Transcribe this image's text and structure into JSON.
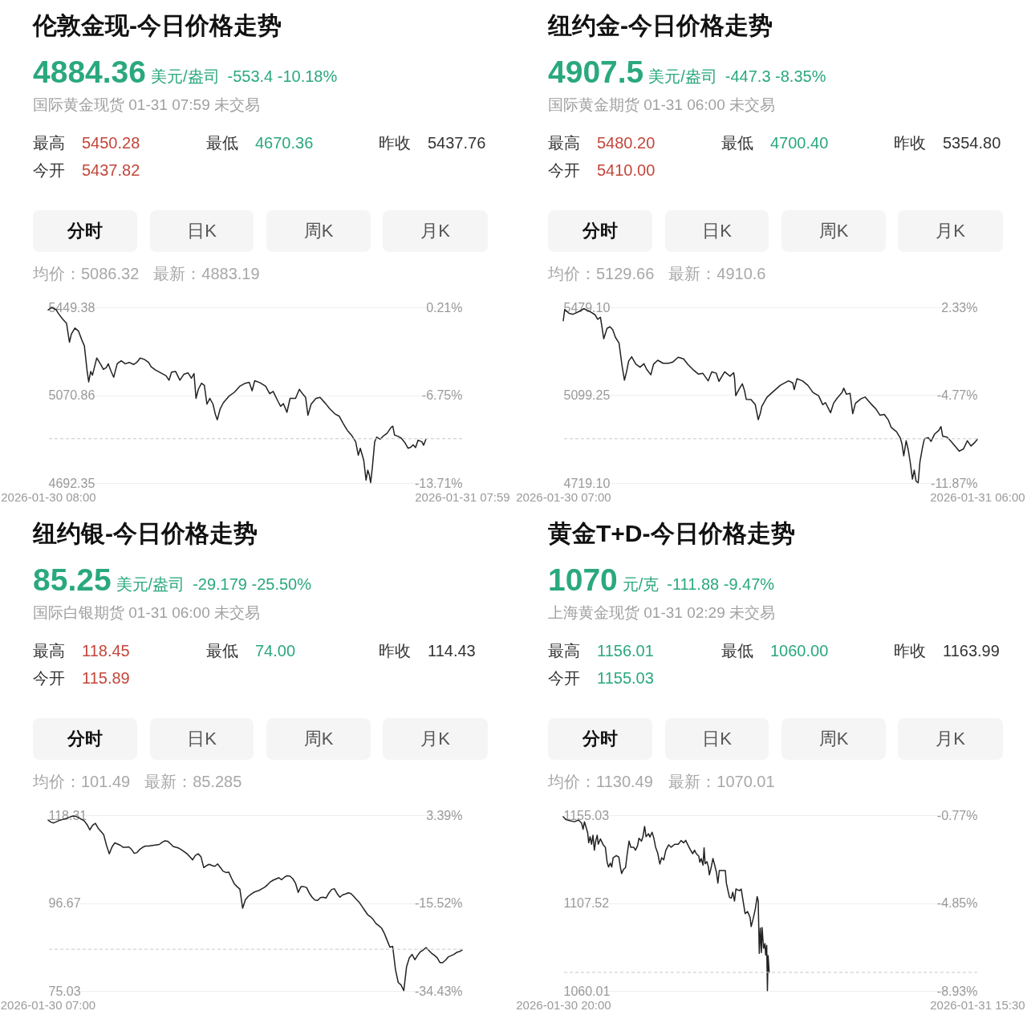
{
  "chart_data": [
    {
      "type": "line",
      "title": "伦敦金现-今日价格走势",
      "subtitle": "国际黄金现货 01-31 07:59 未交易",
      "annotations": [
        "4884.36",
        "美元/盎司",
        "-553.4 -10.18%",
        "最高",
        "5450.28",
        "最低",
        "4670.36",
        "昨收",
        "5437.76",
        "今开",
        "5437.82",
        "分时",
        "日K",
        "周K",
        "月K",
        "均价：5086.32",
        "最新：4883.19"
      ],
      "color": "#222222",
      "grid": "y",
      "xlim": [
        "2026-01-30T08:00",
        "2026-01-31T07:59"
      ],
      "xticks": [
        {
          "value": "2026-01-30T08:00",
          "label": "2026-01-30 08:00"
        },
        {
          "value": "2026-01-31T07:59",
          "label": "2026-01-31 07:59"
        }
      ],
      "ylim": [
        4692.35,
        5449.38
      ],
      "yticks": [
        5449.38,
        5070.86,
        4692.35
      ],
      "y2lim": [
        -13.71,
        0.21
      ],
      "y2ticks": [
        {
          "value": 0.21,
          "label": "0.21%"
        },
        {
          "value": -6.75,
          "label": "-6.75%"
        },
        {
          "value": -13.71,
          "label": "-13.71%"
        }
      ],
      "ref_lines": [
        {
          "axis": "y",
          "value": 4883.19,
          "line_style": "dashed",
          "color": "#c8c8c8"
        }
      ],
      "x": [
        "2026-01-30T08:00",
        "2026-01-30T08:12",
        "2026-01-30T08:27",
        "2026-01-30T08:36",
        "2026-01-30T08:50",
        "2026-01-30T09:04",
        "2026-01-30T09:14",
        "2026-01-30T09:21",
        "2026-01-30T09:33",
        "2026-01-30T09:45",
        "2026-01-30T09:57",
        "2026-01-30T10:06",
        "2026-01-30T10:15",
        "2026-01-30T10:21",
        "2026-01-30T10:28",
        "2026-01-30T10:34",
        "2026-01-30T10:49",
        "2026-01-30T11:03",
        "2026-01-30T11:12",
        "2026-01-30T11:22",
        "2026-01-30T11:29",
        "2026-01-30T11:39",
        "2026-01-30T11:48",
        "2026-01-30T12:00",
        "2026-01-30T12:14",
        "2026-01-30T12:28",
        "2026-01-30T12:42",
        "2026-01-30T12:57",
        "2026-01-30T13:08",
        "2026-01-30T13:20",
        "2026-01-30T13:34",
        "2026-01-30T13:49",
        "2026-01-30T13:58",
        "2026-01-30T14:12",
        "2026-01-30T14:31",
        "2026-01-30T14:50",
        "2026-01-30T15:00",
        "2026-01-30T15:09",
        "2026-01-30T15:23",
        "2026-01-30T15:38",
        "2026-01-30T15:52",
        "2026-01-30T16:06",
        "2026-01-30T16:18",
        "2026-01-30T16:27",
        "2026-01-30T16:34",
        "2026-01-30T16:42",
        "2026-01-30T16:53",
        "2026-01-30T17:03",
        "2026-01-30T17:12",
        "2026-01-30T17:22",
        "2026-01-30T17:33",
        "2026-01-30T17:41",
        "2026-01-30T17:48",
        "2026-01-30T17:58",
        "2026-01-30T18:09",
        "2026-01-30T18:28",
        "2026-01-30T18:47",
        "2026-01-30T19:06",
        "2026-01-30T19:25",
        "2026-01-30T19:39",
        "2026-01-30T19:49",
        "2026-01-30T19:58",
        "2026-01-30T20:17",
        "2026-01-30T20:36",
        "2026-01-30T20:50",
        "2026-01-30T21:02",
        "2026-01-30T21:19",
        "2026-01-30T21:28",
        "2026-01-30T21:38",
        "2026-01-30T21:50",
        "2026-01-30T22:01",
        "2026-01-30T22:20",
        "2026-01-30T22:33",
        "2026-01-30T22:46",
        "2026-01-30T22:55",
        "2026-01-30T23:03",
        "2026-01-30T23:14",
        "2026-01-30T23:31",
        "2026-01-30T23:45",
        "2026-01-31T00:04",
        "2026-01-31T00:19",
        "2026-01-31T00:38",
        "2026-01-31T00:52",
        "2026-01-31T01:06",
        "2026-01-31T01:20",
        "2026-01-31T01:34",
        "2026-01-31T01:49",
        "2026-01-31T01:58",
        "2026-01-31T02:05",
        "2026-01-31T02:17",
        "2026-01-31T02:25",
        "2026-01-31T02:31",
        "2026-01-31T02:36",
        "2026-01-31T02:41",
        "2026-01-31T02:47",
        "2026-01-31T02:55",
        "2026-01-31T03:02",
        "2026-01-31T03:14",
        "2026-01-31T03:26",
        "2026-01-31T03:38",
        "2026-01-31T03:52",
        "2026-01-31T03:58",
        "2026-01-31T04:04",
        "2026-01-31T04:15",
        "2026-01-31T04:27",
        "2026-01-31T04:39",
        "2026-01-31T04:51",
        "2026-01-31T05:01",
        "2026-01-31T05:08",
        "2026-01-31T05:17",
        "2026-01-31T05:26",
        "2026-01-31T05:39",
        "2026-01-31T05:45",
        "2026-01-31T05:53"
      ],
      "values": [
        5438,
        5448,
        5440,
        5422,
        5399,
        5380,
        5299,
        5335,
        5360,
        5348,
        5309,
        5283,
        5180,
        5128,
        5173,
        5157,
        5231,
        5203,
        5182,
        5190,
        5206,
        5173,
        5148,
        5206,
        5219,
        5206,
        5212,
        5203,
        5212,
        5231,
        5225,
        5212,
        5193,
        5180,
        5167,
        5154,
        5135,
        5170,
        5173,
        5135,
        5161,
        5167,
        5144,
        5164,
        5057,
        5096,
        5122,
        5113,
        5032,
        5057,
        5032,
        4989,
        4965,
        5012,
        5038,
        5066,
        5083,
        5109,
        5122,
        5126,
        5090,
        5133,
        5124,
        5109,
        5077,
        5087,
        5044,
        5023,
        5034,
        4997,
        5057,
        5057,
        5096,
        5074,
        5061,
        4984,
        5032,
        5057,
        5061,
        5035,
        5012,
        4989,
        4980,
        4948,
        4919,
        4899,
        4870,
        4812,
        4842,
        4790,
        4705,
        4748,
        4729,
        4694,
        4761,
        4870,
        4890,
        4881,
        4896,
        4906,
        4932,
        4937,
        4899,
        4894,
        4886,
        4868,
        4842,
        4847,
        4857,
        4845,
        4877,
        4870,
        4855,
        4881
      ]
    },
    {
      "type": "line",
      "title": "纽约金-今日价格走势",
      "subtitle": "国际黄金期货 01-31 06:00 未交易",
      "annotations": [
        "4907.5",
        "美元/盎司",
        "-447.3 -8.35%",
        "最高",
        "5480.20",
        "最低",
        "4700.40",
        "昨收",
        "5354.80",
        "今开",
        "5410.00",
        "分时",
        "日K",
        "周K",
        "月K",
        "均价：5129.66",
        "最新：4910.6"
      ],
      "color": "#222222",
      "grid": "y",
      "xlim": [
        "2026-01-30T07:00",
        "2026-01-31T06:00"
      ],
      "xticks": [
        {
          "value": "2026-01-30T07:00",
          "label": "2026-01-30 07:00"
        },
        {
          "value": "2026-01-31T06:00",
          "label": "2026-01-31 06:00"
        }
      ],
      "ylim": [
        4719.1,
        5479.1
      ],
      "yticks": [
        {
          "value": 5479.1,
          "label": "5479.10"
        },
        5099.25,
        {
          "value": 4719.1,
          "label": "4719.10"
        }
      ],
      "y2lim": [
        -11.87,
        2.33
      ],
      "y2ticks": [
        {
          "value": 2.33,
          "label": "2.33%"
        },
        {
          "value": -4.77,
          "label": "-4.77%"
        },
        {
          "value": -11.87,
          "label": "-11.87%"
        }
      ],
      "ref_lines": [
        {
          "axis": "y",
          "value": 4910.6,
          "line_style": "dashed",
          "color": "#c8c8c8"
        }
      ],
      "x": [
        "2026-01-30T07:00",
        "2026-01-30T07:05",
        "2026-01-30T07:19",
        "2026-01-30T07:33",
        "2026-01-30T07:51",
        "2026-01-30T08:09",
        "2026-01-30T08:27",
        "2026-01-30T08:46",
        "2026-01-30T08:55",
        "2026-01-30T09:04",
        "2026-01-30T09:15",
        "2026-01-30T09:26",
        "2026-01-30T09:36",
        "2026-01-30T09:45",
        "2026-01-30T09:54",
        "2026-01-30T10:06",
        "2026-01-30T10:16",
        "2026-01-30T10:24",
        "2026-01-30T10:31",
        "2026-01-30T10:38",
        "2026-01-30T10:48",
        "2026-01-30T11:02",
        "2026-01-30T11:16",
        "2026-01-30T11:29",
        "2026-01-30T11:38",
        "2026-01-30T11:52",
        "2026-01-30T12:01",
        "2026-01-30T12:15",
        "2026-01-30T12:33",
        "2026-01-30T12:51",
        "2026-01-30T13:05",
        "2026-01-30T13:23",
        "2026-01-30T13:41",
        "2026-01-30T13:55",
        "2026-01-30T14:13",
        "2026-01-30T14:31",
        "2026-01-30T14:45",
        "2026-01-30T15:03",
        "2026-01-30T15:15",
        "2026-01-30T15:30",
        "2026-01-30T15:39",
        "2026-01-30T15:58",
        "2026-01-30T16:16",
        "2026-01-30T16:28",
        "2026-01-30T16:31",
        "2026-01-30T16:35",
        "2026-01-30T16:46",
        "2026-01-30T16:57",
        "2026-01-30T17:04",
        "2026-01-30T17:10",
        "2026-01-30T17:26",
        "2026-01-30T17:40",
        "2026-01-30T17:50",
        "2026-01-30T17:57",
        "2026-01-30T18:02",
        "2026-01-30T18:19",
        "2026-01-30T18:41",
        "2026-01-30T19:04",
        "2026-01-30T19:31",
        "2026-01-30T19:45",
        "2026-01-30T19:50",
        "2026-01-30T19:59",
        "2026-01-30T20:17",
        "2026-01-30T20:35",
        "2026-01-30T20:53",
        "2026-01-30T21:11",
        "2026-01-30T21:25",
        "2026-01-30T21:34",
        "2026-01-30T21:51",
        "2026-01-30T22:01",
        "2026-01-30T22:13",
        "2026-01-30T22:29",
        "2026-01-30T22:35",
        "2026-01-30T22:44",
        "2026-01-30T22:56",
        "2026-01-30T23:05",
        "2026-01-30T23:14",
        "2026-01-30T23:33",
        "2026-01-30T23:46",
        "2026-01-31T00:04",
        "2026-01-31T00:23",
        "2026-01-31T00:36",
        "2026-01-31T00:50",
        "2026-01-31T01:03",
        "2026-01-31T01:13",
        "2026-01-31T01:31",
        "2026-01-31T01:43",
        "2026-01-31T01:49",
        "2026-01-31T01:55",
        "2026-01-31T02:03",
        "2026-01-31T02:10",
        "2026-01-31T02:17",
        "2026-01-31T02:24",
        "2026-01-31T02:30",
        "2026-01-31T02:36",
        "2026-01-31T02:43",
        "2026-01-31T02:49",
        "2026-01-31T02:57",
        "2026-01-31T03:04",
        "2026-01-31T03:17",
        "2026-01-31T03:26",
        "2026-01-31T03:38",
        "2026-01-31T03:52",
        "2026-01-31T03:59",
        "2026-01-31T04:05",
        "2026-01-31T04:19",
        "2026-01-31T04:33",
        "2026-01-31T04:46",
        "2026-01-31T05:00",
        "2026-01-31T05:14",
        "2026-01-31T05:27",
        "2026-01-31T05:39",
        "2026-01-31T05:50",
        "2026-01-31T06:00"
      ],
      "values": [
        5421,
        5470,
        5453,
        5449,
        5460,
        5473,
        5462,
        5447,
        5427,
        5436,
        5343,
        5388,
        5395,
        5382,
        5349,
        5324,
        5226,
        5164,
        5200,
        5246,
        5265,
        5233,
        5220,
        5235,
        5211,
        5187,
        5233,
        5250,
        5237,
        5237,
        5242,
        5263,
        5256,
        5233,
        5209,
        5190,
        5194,
        5161,
        5200,
        5194,
        5159,
        5200,
        5181,
        5196,
        5172,
        5097,
        5125,
        5148,
        5120,
        5081,
        5080,
        5058,
        4993,
        5021,
        5051,
        5090,
        5116,
        5142,
        5161,
        5152,
        5123,
        5170,
        5161,
        5142,
        5110,
        5097,
        5058,
        5067,
        5023,
        5064,
        5086,
        5110,
        5129,
        5103,
        5107,
        5019,
        5064,
        5084,
        5091,
        5064,
        5038,
        5012,
        5016,
        4993,
        4960,
        4941,
        4915,
        4889,
        4837,
        4902,
        4863,
        4805,
        4736,
        4775,
        4727,
        4720,
        4811,
        4870,
        4911,
        4915,
        4899,
        4931,
        4947,
        4963,
        4921,
        4918,
        4899,
        4879,
        4857,
        4866,
        4902,
        4879,
        4892,
        4907
      ]
    },
    {
      "type": "line",
      "title": "纽约银-今日价格走势",
      "subtitle": "国际白银期货 01-31 06:00 未交易",
      "annotations": [
        "85.25",
        "美元/盎司",
        "-29.179 -25.50%",
        "最高",
        "118.45",
        "最低",
        "74.00",
        "昨收",
        "114.43",
        "今开",
        "115.89",
        "分时",
        "日K",
        "周K",
        "月K",
        "均价：101.49",
        "最新：85.285",
        "2026-01-30 07:00"
      ],
      "color": "#222222",
      "grid": "y",
      "categories": [
        null,
        null,
        null,
        null,
        null,
        null,
        null,
        null,
        null,
        null,
        null,
        null,
        null,
        null,
        null,
        null,
        null,
        null,
        null,
        null,
        null,
        null,
        null,
        null,
        null,
        null,
        null,
        null,
        null,
        null,
        null,
        null,
        null,
        null,
        null,
        null,
        null,
        null,
        null,
        null,
        null,
        null,
        null,
        null,
        null,
        null,
        null,
        null,
        null,
        null,
        null,
        null,
        null,
        null,
        null,
        null,
        null,
        null,
        null,
        null,
        null,
        null,
        null,
        null,
        null,
        null,
        null,
        null,
        null,
        null,
        null,
        null,
        null,
        null,
        null,
        null,
        null,
        null,
        null,
        null,
        null,
        null,
        null,
        null,
        null,
        null,
        null,
        null,
        null,
        null,
        null,
        null,
        null,
        null,
        null,
        null,
        null,
        null,
        null,
        null,
        null,
        null,
        null,
        null,
        null,
        null,
        null,
        null,
        null,
        null,
        null,
        null,
        null,
        null,
        null,
        null,
        null,
        null,
        null,
        null,
        null,
        null,
        null,
        null,
        null,
        null,
        null,
        null,
        null,
        null,
        null,
        null,
        null,
        null,
        null,
        null,
        null,
        null,
        null,
        null,
        null,
        null,
        null,
        null,
        null,
        null,
        null,
        null,
        null,
        null
      ],
      "ylim": [
        75.03,
        118.31
      ],
      "yticks": [
        118.31,
        96.67,
        75.03
      ],
      "y2lim": [
        -34.43,
        3.39
      ],
      "y2ticks": [
        {
          "value": 3.39,
          "label": "3.39%"
        },
        {
          "value": -15.52,
          "label": "-15.52%"
        },
        {
          "value": -34.43,
          "label": "-34.43%"
        }
      ],
      "ref_lines": [
        {
          "axis": "y",
          "value": 85.285,
          "line_style": "dashed",
          "color": "#c8c8c8"
        }
      ],
      "values": [
        117.1,
        116.6,
        116.4,
        116.7,
        117.0,
        117.2,
        117.4,
        117.6,
        117.9,
        118.1,
        118.0,
        117.7,
        117.3,
        116.9,
        116.0,
        114.7,
        115.8,
        116.3,
        115.1,
        114.3,
        113.5,
        110.9,
        108.8,
        110.5,
        111.5,
        111.2,
        110.9,
        110.4,
        110.4,
        110.5,
        109.9,
        108.9,
        109.1,
        109.9,
        110.4,
        110.7,
        110.7,
        110.8,
        110.9,
        111.0,
        111.1,
        111.6,
        112.0,
        111.9,
        111.3,
        110.6,
        110.4,
        110.2,
        109.8,
        109.3,
        108.8,
        108.1,
        107.3,
        108.4,
        108.8,
        108.1,
        105.4,
        105.9,
        106.2,
        105.9,
        105.7,
        106.3,
        105.4,
        104.5,
        104.2,
        104.3,
        102.8,
        101.4,
        100.7,
        100.1,
        95.4,
        97.5,
        98.3,
        98.8,
        99.3,
        99.6,
        99.8,
        100.2,
        100.6,
        101.2,
        101.9,
        102.3,
        102.6,
        102.9,
        102.4,
        103.0,
        103.4,
        103.3,
        102.7,
        101.6,
        99.3,
        100.7,
        100.7,
        100.5,
        99.1,
        98.1,
        97.4,
        97.3,
        98.0,
        98.1,
        97.9,
        99.1,
        100.0,
        100.2,
        99.0,
        98.1,
        98.7,
        98.9,
        99.2,
        99.0,
        98.3,
        97.5,
        96.8,
        95.8,
        94.8,
        93.8,
        93.3,
        92.6,
        91.6,
        91.1,
        90.5,
        89.2,
        87.5,
        85.8,
        86.0,
        80.3,
        77.1,
        76.5,
        75.1,
        81.0,
        83.2,
        84.0,
        82.7,
        83.8,
        84.7,
        85.1,
        85.7,
        85.0,
        84.3,
        83.8,
        83.2,
        82.0,
        82.0,
        82.6,
        83.4,
        83.7,
        84.0,
        84.5,
        84.7,
        85.1
      ]
    },
    {
      "type": "line",
      "title": "黄金T+D-今日价格走势",
      "subtitle": "上海黄金现货 01-31 02:29 未交易",
      "annotations": [
        "1070",
        "元/克",
        "-111.88 -9.47%",
        "最高",
        "1156.01",
        "最低",
        "1060.00",
        "昨收",
        "1163.99",
        "今开",
        "1155.03",
        "分时",
        "日K",
        "周K",
        "月K",
        "均价：1130.49",
        "最新：1070.01"
      ],
      "color": "#222222",
      "grid": "y",
      "xlim": [
        "2026-01-30T20:00",
        "2026-01-31T15:30"
      ],
      "xticks": [
        {
          "value": "2026-01-30T20:00",
          "label": "2026-01-30 20:00"
        },
        {
          "value": "2026-01-31T15:30",
          "label": "2026-01-31 15:30"
        }
      ],
      "ylim": [
        1060.01,
        1155.03
      ],
      "yticks": [
        1155.03,
        1107.52,
        1060.01
      ],
      "y2lim": [
        -8.93,
        -0.77
      ],
      "y2ticks": [
        {
          "value": -0.77,
          "label": "-0.77%"
        },
        {
          "value": -4.85,
          "label": "-4.85%"
        },
        {
          "value": -8.93,
          "label": "-8.93%"
        }
      ],
      "ref_lines": [
        {
          "axis": "y",
          "value": 1070.01,
          "line_style": "dashed",
          "color": "#c8c8c8"
        }
      ],
      "x": [
        "2026-01-30T20:00",
        "2026-01-30T20:08",
        "2026-01-30T20:20",
        "2026-01-30T20:32",
        "2026-01-30T20:43",
        "2026-01-30T20:52",
        "2026-01-30T20:56",
        "2026-01-30T21:00",
        "2026-01-30T21:05",
        "2026-01-30T21:09",
        "2026-01-30T21:12",
        "2026-01-30T21:16",
        "2026-01-30T21:20",
        "2026-01-30T21:24",
        "2026-01-30T21:28",
        "2026-01-30T21:32",
        "2026-01-30T21:36",
        "2026-01-30T21:39",
        "2026-01-30T21:45",
        "2026-01-30T21:53",
        "2026-01-30T21:59",
        "2026-01-30T22:04",
        "2026-01-30T22:08",
        "2026-01-30T22:13",
        "2026-01-30T22:17",
        "2026-01-30T22:21",
        "2026-01-30T22:30",
        "2026-01-30T22:37",
        "2026-01-30T22:42",
        "2026-01-30T22:45",
        "2026-01-30T22:50",
        "2026-01-30T22:56",
        "2026-01-30T23:00",
        "2026-01-30T23:06",
        "2026-01-30T23:11",
        "2026-01-30T23:19",
        "2026-01-30T23:24",
        "2026-01-30T23:30",
        "2026-01-30T23:34",
        "2026-01-30T23:41",
        "2026-01-30T23:45",
        "2026-01-30T23:50",
        "2026-01-30T23:54",
        "2026-01-31T00:01",
        "2026-01-31T00:05",
        "2026-01-31T00:11",
        "2026-01-31T00:16",
        "2026-01-31T00:21",
        "2026-01-31T00:27",
        "2026-01-31T00:33",
        "2026-01-31T00:38",
        "2026-01-31T00:44",
        "2026-01-31T00:50",
        "2026-01-31T00:58",
        "2026-01-31T01:05",
        "2026-01-31T01:15",
        "2026-01-31T01:25",
        "2026-01-31T01:33",
        "2026-01-31T01:40",
        "2026-01-31T01:46",
        "2026-01-31T01:52",
        "2026-01-31T01:59",
        "2026-01-31T02:06",
        "2026-01-31T02:11",
        "2026-01-31T02:16",
        "2026-01-31T02:23",
        "2026-01-31T02:26",
        "2026-01-31T02:30",
        "2026-01-31T02:35",
        "2026-01-31T02:38",
        "2026-01-31T02:41",
        "2026-01-31T02:46",
        "2026-01-31T02:50",
        "2026-01-31T02:53",
        "2026-01-31T02:58",
        "2026-01-31T03:03",
        "2026-01-31T03:08",
        "2026-01-31T03:13",
        "2026-01-31T03:17",
        "2026-01-31T03:21",
        "2026-01-31T03:38",
        "2026-01-31T03:41",
        "2026-01-31T03:46",
        "2026-01-31T03:50",
        "2026-01-31T03:55",
        "2026-01-31T03:59",
        "2026-01-31T04:04",
        "2026-01-31T04:08",
        "2026-01-31T04:18",
        "2026-01-31T04:23",
        "2026-01-31T04:27",
        "2026-01-31T04:34",
        "2026-01-31T04:41",
        "2026-01-31T04:48",
        "2026-01-31T04:51",
        "2026-01-31T04:57",
        "2026-01-31T05:03",
        "2026-01-31T05:08",
        "2026-01-31T05:11",
        "2026-01-31T05:14",
        "2026-01-31T05:17",
        "2026-01-31T05:20",
        "2026-01-31T05:22",
        "2026-01-31T05:26",
        "2026-01-31T05:30",
        "2026-01-31T05:32",
        "2026-01-31T05:35",
        "2026-01-31T05:37",
        "2026-01-31T05:39",
        "2026-01-31T05:42"
      ],
      "values": [
        1154.2,
        1152.6,
        1152.0,
        1151.5,
        1152.4,
        1150.7,
        1147.4,
        1151.5,
        1148.2,
        1145.5,
        1140.1,
        1143.4,
        1139.3,
        1144.2,
        1136.1,
        1141.3,
        1144.2,
        1139.3,
        1142.2,
        1139.0,
        1137.7,
        1129.6,
        1127.0,
        1129.1,
        1127.0,
        1132.0,
        1133.2,
        1132.4,
        1126.4,
        1123.5,
        1125.6,
        1126.7,
        1132.9,
        1141.0,
        1137.7,
        1137.7,
        1136.1,
        1138.5,
        1142.6,
        1141.0,
        1143.2,
        1149.0,
        1143.4,
        1145.0,
        1143.2,
        1145.8,
        1142.6,
        1137.7,
        1134.5,
        1128.6,
        1132.0,
        1130.9,
        1136.1,
        1139.0,
        1137.7,
        1139.3,
        1139.3,
        1141.3,
        1140.1,
        1141.4,
        1139.0,
        1136.4,
        1134.2,
        1136.1,
        1134.2,
        1132.9,
        1129.6,
        1131.6,
        1128.0,
        1137.4,
        1128.8,
        1129.9,
        1127.2,
        1122.8,
        1126.7,
        1131.6,
        1128.0,
        1124.0,
        1118.3,
        1125.1,
        1125.1,
        1118.3,
        1113.8,
        1110.5,
        1110.2,
        1113.4,
        1108.6,
        1115.1,
        1114.2,
        1115.1,
        1110.2,
        1101.8,
        1102.9,
        1099.7,
        1094.8,
        1099.2,
        1104.5,
        1111.0,
        1108.6,
        1080.3,
        1094.0,
        1080.7,
        1094.3,
        1083.0,
        1085.6,
        1079.4,
        1084.6,
        1060.1,
        1079.1,
        1070.0
      ]
    }
  ]
}
